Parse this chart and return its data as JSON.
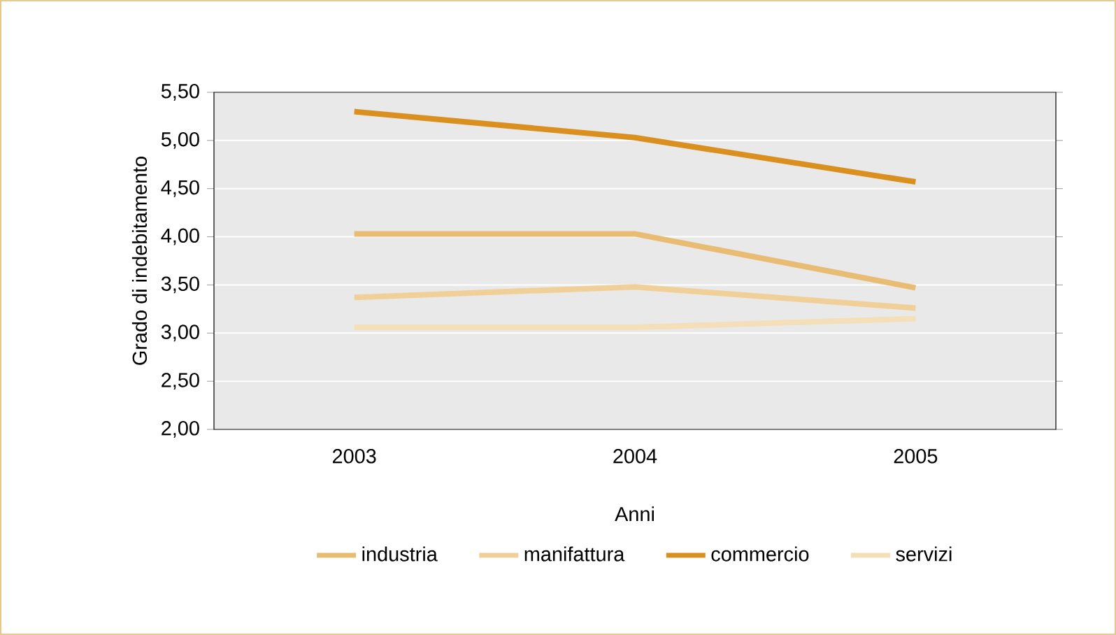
{
  "chart_data": {
    "type": "line",
    "xlabel": "Anni",
    "ylabel": "Grado di indebitamento",
    "categories": [
      "2003",
      "2004",
      "2005"
    ],
    "series": [
      {
        "name": "industria",
        "color": "#e8bd73",
        "values": [
          4.03,
          4.03,
          3.47
        ]
      },
      {
        "name": "manifattura",
        "color": "#f0cf98",
        "values": [
          3.37,
          3.48,
          3.26
        ]
      },
      {
        "name": "commercio",
        "color": "#d9901f",
        "values": [
          5.3,
          5.03,
          4.57
        ]
      },
      {
        "name": "servizi",
        "color": "#f5dfb8",
        "values": [
          3.06,
          3.06,
          3.15
        ]
      }
    ],
    "ylim": [
      2.0,
      5.5
    ],
    "yticks": [
      {
        "value": 2.0,
        "label": "2,00"
      },
      {
        "value": 2.5,
        "label": "2,50"
      },
      {
        "value": 3.0,
        "label": "3,00"
      },
      {
        "value": 3.5,
        "label": "3,50"
      },
      {
        "value": 4.0,
        "label": "4,00"
      },
      {
        "value": 4.5,
        "label": "4,50"
      },
      {
        "value": 5.0,
        "label": "5,00"
      },
      {
        "value": 5.5,
        "label": "5,50"
      }
    ],
    "grid": "y",
    "legend": "bottom",
    "marker": "none",
    "line_style": "solid"
  }
}
